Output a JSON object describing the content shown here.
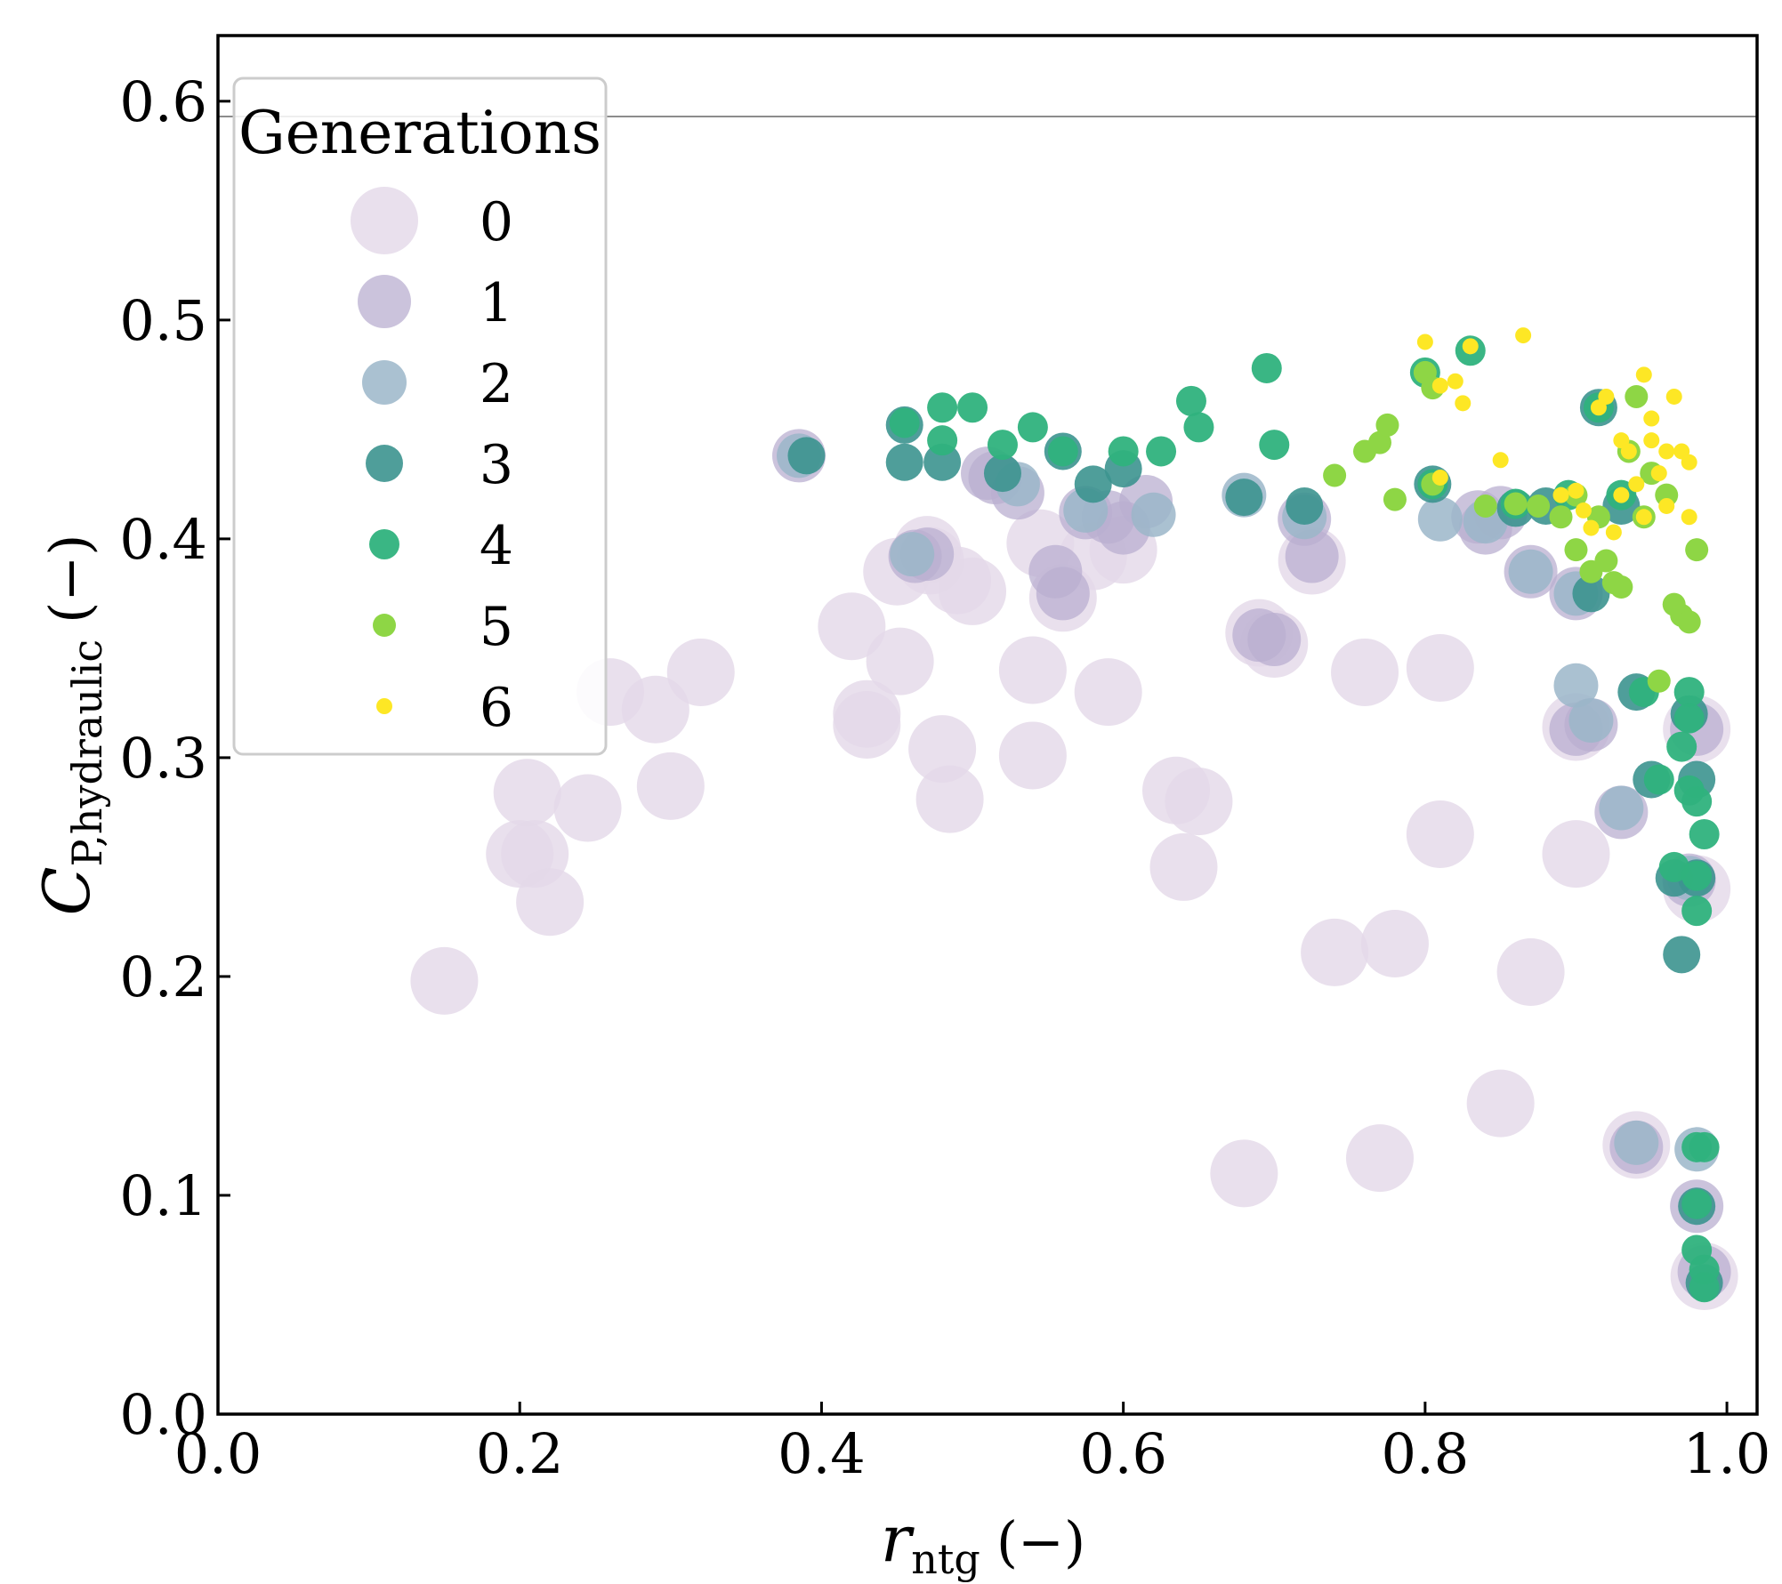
{
  "chart_data": {
    "type": "scatter",
    "title": "",
    "xlabel": {
      "main": "r",
      "sub": "ntg",
      "unit": "(−)"
    },
    "ylabel": {
      "main": "C",
      "sub": "P,hydraulic",
      "unit": "(−)"
    },
    "xlim": [
      0.0,
      1.02
    ],
    "ylim": [
      0.0,
      0.63
    ],
    "xticks": [
      "0.0",
      "0.2",
      "0.4",
      "0.6",
      "0.8",
      "1.0"
    ],
    "yticks": [
      "0.0",
      "0.1",
      "0.2",
      "0.3",
      "0.4",
      "0.5",
      "0.6"
    ],
    "reference_line_y": 0.593,
    "legend": {
      "title": "Generations",
      "location": "upper-left",
      "entries": [
        "0",
        "1",
        "2",
        "3",
        "4",
        "5",
        "6"
      ]
    },
    "series": [
      {
        "name": "0",
        "color": "#e3d8e8",
        "points": [
          [
            0.15,
            0.198
          ],
          [
            0.2,
            0.256
          ],
          [
            0.205,
            0.284
          ],
          [
            0.21,
            0.256
          ],
          [
            0.22,
            0.234
          ],
          [
            0.245,
            0.277
          ],
          [
            0.26,
            0.33
          ],
          [
            0.29,
            0.322
          ],
          [
            0.3,
            0.287
          ],
          [
            0.32,
            0.339
          ],
          [
            0.42,
            0.36
          ],
          [
            0.43,
            0.32
          ],
          [
            0.43,
            0.315
          ],
          [
            0.45,
            0.385
          ],
          [
            0.452,
            0.344
          ],
          [
            0.47,
            0.395
          ],
          [
            0.472,
            0.39
          ],
          [
            0.48,
            0.304
          ],
          [
            0.485,
            0.281
          ],
          [
            0.49,
            0.381
          ],
          [
            0.5,
            0.376
          ],
          [
            0.54,
            0.34
          ],
          [
            0.54,
            0.301
          ],
          [
            0.545,
            0.398
          ],
          [
            0.56,
            0.373
          ],
          [
            0.58,
            0.392
          ],
          [
            0.59,
            0.33
          ],
          [
            0.6,
            0.395
          ],
          [
            0.635,
            0.285
          ],
          [
            0.64,
            0.25
          ],
          [
            0.65,
            0.28
          ],
          [
            0.68,
            0.11
          ],
          [
            0.69,
            0.357
          ],
          [
            0.7,
            0.352
          ],
          [
            0.725,
            0.39
          ],
          [
            0.74,
            0.211
          ],
          [
            0.76,
            0.339
          ],
          [
            0.77,
            0.117
          ],
          [
            0.78,
            0.215
          ],
          [
            0.81,
            0.265
          ],
          [
            0.81,
            0.341
          ],
          [
            0.85,
            0.142
          ],
          [
            0.87,
            0.202
          ],
          [
            0.9,
            0.314
          ],
          [
            0.9,
            0.256
          ],
          [
            0.94,
            0.123
          ],
          [
            0.98,
            0.24
          ],
          [
            0.98,
            0.313
          ],
          [
            0.985,
            0.063
          ]
        ]
      },
      {
        "name": "1",
        "color": "#b9afd0",
        "points": [
          [
            0.385,
            0.438
          ],
          [
            0.462,
            0.392
          ],
          [
            0.47,
            0.393
          ],
          [
            0.51,
            0.43
          ],
          [
            0.515,
            0.428
          ],
          [
            0.53,
            0.421
          ],
          [
            0.555,
            0.385
          ],
          [
            0.56,
            0.375
          ],
          [
            0.575,
            0.412
          ],
          [
            0.59,
            0.41
          ],
          [
            0.6,
            0.405
          ],
          [
            0.615,
            0.417
          ],
          [
            0.69,
            0.356
          ],
          [
            0.7,
            0.354
          ],
          [
            0.72,
            0.409
          ],
          [
            0.725,
            0.392
          ],
          [
            0.835,
            0.41
          ],
          [
            0.84,
            0.405
          ],
          [
            0.85,
            0.412
          ],
          [
            0.87,
            0.385
          ],
          [
            0.9,
            0.375
          ],
          [
            0.9,
            0.313
          ],
          [
            0.91,
            0.315
          ],
          [
            0.93,
            0.275
          ],
          [
            0.94,
            0.122
          ],
          [
            0.975,
            0.244
          ],
          [
            0.98,
            0.313
          ],
          [
            0.98,
            0.095
          ],
          [
            0.985,
            0.065
          ]
        ]
      },
      {
        "name": "2",
        "color": "#9bb6c9",
        "points": [
          [
            0.385,
            0.438
          ],
          [
            0.46,
            0.393
          ],
          [
            0.53,
            0.425
          ],
          [
            0.575,
            0.413
          ],
          [
            0.62,
            0.411
          ],
          [
            0.68,
            0.42
          ],
          [
            0.72,
            0.41
          ],
          [
            0.81,
            0.409
          ],
          [
            0.84,
            0.408
          ],
          [
            0.87,
            0.385
          ],
          [
            0.9,
            0.375
          ],
          [
            0.9,
            0.333
          ],
          [
            0.91,
            0.317
          ],
          [
            0.93,
            0.277
          ],
          [
            0.94,
            0.124
          ],
          [
            0.975,
            0.245
          ],
          [
            0.98,
            0.121
          ]
        ]
      },
      {
        "name": "3",
        "color": "#3c948f",
        "points": [
          [
            0.39,
            0.438
          ],
          [
            0.455,
            0.452
          ],
          [
            0.455,
            0.435
          ],
          [
            0.48,
            0.435
          ],
          [
            0.52,
            0.43
          ],
          [
            0.56,
            0.44
          ],
          [
            0.58,
            0.425
          ],
          [
            0.6,
            0.432
          ],
          [
            0.68,
            0.419
          ],
          [
            0.72,
            0.415
          ],
          [
            0.805,
            0.425
          ],
          [
            0.86,
            0.414
          ],
          [
            0.88,
            0.415
          ],
          [
            0.91,
            0.375
          ],
          [
            0.915,
            0.46
          ],
          [
            0.93,
            0.415
          ],
          [
            0.94,
            0.33
          ],
          [
            0.95,
            0.29
          ],
          [
            0.965,
            0.245
          ],
          [
            0.97,
            0.21
          ],
          [
            0.975,
            0.32
          ],
          [
            0.98,
            0.29
          ],
          [
            0.98,
            0.245
          ],
          [
            0.98,
            0.095
          ],
          [
            0.985,
            0.06
          ]
        ]
      },
      {
        "name": "4",
        "color": "#2fb27d",
        "points": [
          [
            0.455,
            0.453
          ],
          [
            0.48,
            0.46
          ],
          [
            0.48,
            0.445
          ],
          [
            0.5,
            0.46
          ],
          [
            0.52,
            0.443
          ],
          [
            0.54,
            0.451
          ],
          [
            0.56,
            0.44
          ],
          [
            0.6,
            0.44
          ],
          [
            0.625,
            0.44
          ],
          [
            0.645,
            0.463
          ],
          [
            0.65,
            0.451
          ],
          [
            0.695,
            0.478
          ],
          [
            0.7,
            0.443
          ],
          [
            0.8,
            0.476
          ],
          [
            0.805,
            0.425
          ],
          [
            0.83,
            0.486
          ],
          [
            0.86,
            0.416
          ],
          [
            0.895,
            0.42
          ],
          [
            0.915,
            0.46
          ],
          [
            0.93,
            0.42
          ],
          [
            0.945,
            0.33
          ],
          [
            0.955,
            0.29
          ],
          [
            0.965,
            0.25
          ],
          [
            0.97,
            0.305
          ],
          [
            0.975,
            0.33
          ],
          [
            0.975,
            0.318
          ],
          [
            0.975,
            0.285
          ],
          [
            0.98,
            0.28
          ],
          [
            0.985,
            0.265
          ],
          [
            0.98,
            0.246
          ],
          [
            0.98,
            0.23
          ],
          [
            0.98,
            0.122
          ],
          [
            0.985,
            0.122
          ],
          [
            0.98,
            0.096
          ],
          [
            0.98,
            0.075
          ],
          [
            0.985,
            0.066
          ],
          [
            0.985,
            0.058
          ]
        ]
      },
      {
        "name": "5",
        "color": "#8ed645",
        "points": [
          [
            0.74,
            0.429
          ],
          [
            0.76,
            0.44
          ],
          [
            0.77,
            0.444
          ],
          [
            0.775,
            0.452
          ],
          [
            0.78,
            0.418
          ],
          [
            0.8,
            0.476
          ],
          [
            0.805,
            0.469
          ],
          [
            0.805,
            0.425
          ],
          [
            0.84,
            0.415
          ],
          [
            0.86,
            0.416
          ],
          [
            0.875,
            0.415
          ],
          [
            0.89,
            0.41
          ],
          [
            0.9,
            0.42
          ],
          [
            0.9,
            0.395
          ],
          [
            0.91,
            0.385
          ],
          [
            0.915,
            0.41
          ],
          [
            0.92,
            0.39
          ],
          [
            0.925,
            0.38
          ],
          [
            0.93,
            0.378
          ],
          [
            0.935,
            0.44
          ],
          [
            0.94,
            0.465
          ],
          [
            0.945,
            0.41
          ],
          [
            0.95,
            0.43
          ],
          [
            0.96,
            0.42
          ],
          [
            0.965,
            0.37
          ],
          [
            0.97,
            0.365
          ],
          [
            0.975,
            0.362
          ],
          [
            0.98,
            0.395
          ],
          [
            0.955,
            0.335
          ]
        ]
      },
      {
        "name": "6",
        "color": "#fde725",
        "points": [
          [
            0.8,
            0.49
          ],
          [
            0.81,
            0.47
          ],
          [
            0.81,
            0.428
          ],
          [
            0.82,
            0.472
          ],
          [
            0.825,
            0.462
          ],
          [
            0.83,
            0.488
          ],
          [
            0.85,
            0.436
          ],
          [
            0.865,
            0.493
          ],
          [
            0.89,
            0.42
          ],
          [
            0.9,
            0.422
          ],
          [
            0.905,
            0.413
          ],
          [
            0.91,
            0.405
          ],
          [
            0.915,
            0.46
          ],
          [
            0.92,
            0.465
          ],
          [
            0.93,
            0.445
          ],
          [
            0.935,
            0.44
          ],
          [
            0.94,
            0.425
          ],
          [
            0.945,
            0.475
          ],
          [
            0.95,
            0.455
          ],
          [
            0.955,
            0.43
          ],
          [
            0.96,
            0.415
          ],
          [
            0.965,
            0.465
          ],
          [
            0.97,
            0.44
          ],
          [
            0.975,
            0.435
          ],
          [
            0.925,
            0.403
          ],
          [
            0.945,
            0.41
          ],
          [
            0.96,
            0.44
          ],
          [
            0.975,
            0.41
          ],
          [
            0.95,
            0.445
          ],
          [
            0.93,
            0.42
          ]
        ]
      }
    ]
  }
}
